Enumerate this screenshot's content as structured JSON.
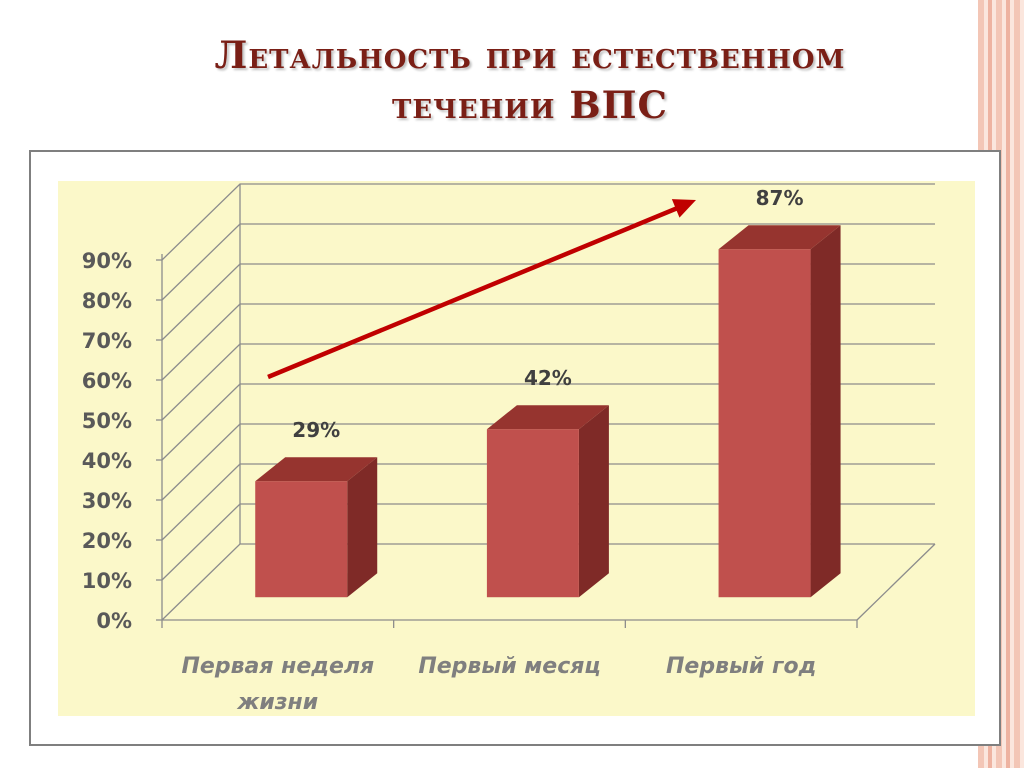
{
  "slide": {
    "title_line1": "Летальность при естественном",
    "title_line2": "течении ВПС"
  },
  "chart_data": {
    "type": "bar",
    "categories": [
      [
        "Первая неделя",
        "жизни"
      ],
      [
        "Первый месяц"
      ],
      [
        "Первый год"
      ]
    ],
    "values": [
      29,
      42,
      87
    ],
    "data_labels": [
      "29%",
      "42%",
      "87%"
    ],
    "y_ticks": [
      "0%",
      "10%",
      "20%",
      "30%",
      "40%",
      "50%",
      "60%",
      "70%",
      "80%",
      "90%"
    ],
    "ylim": [
      0,
      90
    ],
    "title": "",
    "xlabel": "",
    "ylabel": "",
    "grid": true,
    "legend": "none",
    "trend_arrow": true,
    "colors": {
      "bar_front": "#c0504d",
      "bar_side": "#7f2a27",
      "bar_top": "#96342f",
      "arrow": "#c00000",
      "plot_background": "#fbf8c9",
      "axis_text": "#595959",
      "category_text": "#7f7f7f",
      "title": "#7a1f16"
    }
  }
}
